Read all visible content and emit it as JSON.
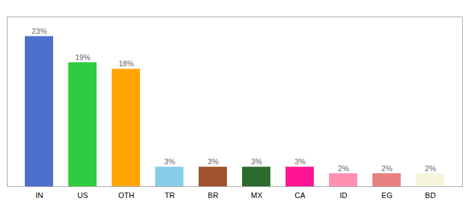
{
  "chart_data": {
    "type": "bar",
    "categories": [
      "IN",
      "US",
      "OTH",
      "TR",
      "BR",
      "MX",
      "CA",
      "ID",
      "EG",
      "BD"
    ],
    "values": [
      23,
      19,
      18,
      3,
      3,
      3,
      3,
      2,
      2,
      2
    ],
    "value_labels": [
      "23%",
      "19%",
      "18%",
      "3%",
      "3%",
      "3%",
      "3%",
      "2%",
      "2%",
      "2%"
    ],
    "colors": [
      "#4C6ECD",
      "#2ECC40",
      "#FFA500",
      "#87CEEB",
      "#A0522D",
      "#2D6A2D",
      "#FF1493",
      "#FF91B0",
      "#E88080",
      "#F5F5DC"
    ],
    "ylim": [
      0,
      26
    ],
    "data_labels": true,
    "tick_labels": "x",
    "grid": false
  }
}
